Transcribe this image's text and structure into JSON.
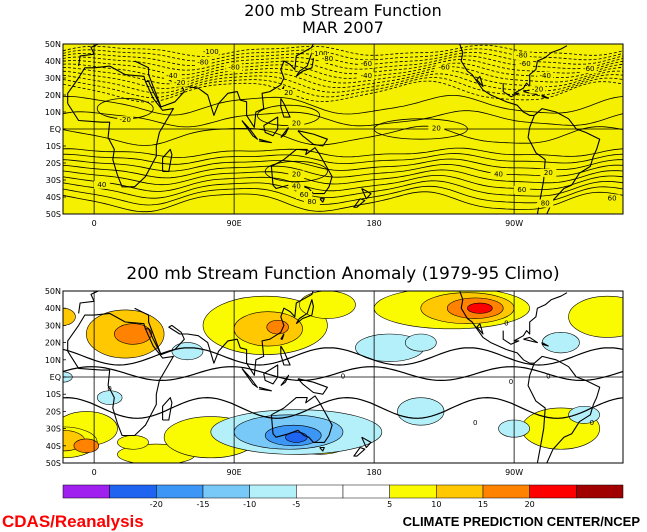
{
  "top_map": {
    "title_line1": "200 mb Stream Function",
    "title_line2": "MAR 2007",
    "fill_color": "#f5f000",
    "lat_labels": [
      "50N",
      "40N",
      "30N",
      "20N",
      "10N",
      "EQ",
      "10S",
      "20S",
      "30S",
      "40S",
      "50S"
    ],
    "lon_labels": [
      "0",
      "90E",
      "180",
      "90W",
      "0"
    ],
    "contour_labels": [
      {
        "text": "-100",
        "lon": 75,
        "lat": 44
      },
      {
        "text": "-80",
        "lon": 70,
        "lat": 38
      },
      {
        "text": "-60",
        "lon": -42,
        "lat": 34
      },
      {
        "text": "-40",
        "lon": 50,
        "lat": 30
      },
      {
        "text": "-20",
        "lon": 55,
        "lat": 26
      },
      {
        "text": "-80",
        "lon": 90,
        "lat": 35
      },
      {
        "text": "-100",
        "lon": 145,
        "lat": 43
      },
      {
        "text": "-80",
        "lon": 150,
        "lat": 40
      },
      {
        "text": "-60",
        "lon": 175,
        "lat": 37
      },
      {
        "text": "-40",
        "lon": 175,
        "lat": 30
      },
      {
        "text": "-60",
        "lon": -135,
        "lat": 35
      },
      {
        "text": "-80",
        "lon": -85,
        "lat": 42
      },
      {
        "text": "-60",
        "lon": -83,
        "lat": 37
      },
      {
        "text": "-40",
        "lon": -70,
        "lat": 30
      },
      {
        "text": "-20",
        "lon": -75,
        "lat": 22
      },
      {
        "text": "20",
        "lon": 125,
        "lat": 20
      },
      {
        "text": "-20",
        "lon": 20,
        "lat": 4
      },
      {
        "text": "20",
        "lon": 130,
        "lat": 2
      },
      {
        "text": "20",
        "lon": -140,
        "lat": -1
      },
      {
        "text": "20",
        "lon": 130,
        "lat": -28
      },
      {
        "text": "40",
        "lon": 130,
        "lat": -35
      },
      {
        "text": "60",
        "lon": 135,
        "lat": -40
      },
      {
        "text": "80",
        "lon": 140,
        "lat": -44
      },
      {
        "text": "40",
        "lon": 5,
        "lat": -34
      },
      {
        "text": "60",
        "lon": -27,
        "lat": -42
      },
      {
        "text": "40",
        "lon": -100,
        "lat": -28
      },
      {
        "text": "20",
        "lon": -68,
        "lat": -27
      },
      {
        "text": "60",
        "lon": -85,
        "lat": -37
      },
      {
        "text": "80",
        "lon": -70,
        "lat": -45
      }
    ]
  },
  "anomaly_map": {
    "title": "200 mb Stream Function Anomaly (1979-95 Climo)",
    "lat_labels": [
      "50N",
      "40N",
      "30N",
      "20N",
      "10N",
      "EQ",
      "10S",
      "20S",
      "30S",
      "40S",
      "50S"
    ],
    "lon_labels": [
      "0",
      "90E",
      "180",
      "90W",
      "0"
    ],
    "contour_zero_labels": [
      {
        "text": "0",
        "lon": 160,
        "lat": -1
      },
      {
        "text": "0",
        "lon": -68,
        "lat": -1
      },
      {
        "text": "0",
        "lon": -92,
        "lat": -4
      },
      {
        "text": "0",
        "lon": -115,
        "lat": -28
      },
      {
        "text": "0",
        "lon": -40,
        "lat": -28
      },
      {
        "text": "0",
        "lon": 10,
        "lat": -8
      },
      {
        "text": "0",
        "lon": -95,
        "lat": 30
      }
    ],
    "anomaly_blobs": [
      {
        "lon": 20,
        "lat": 25,
        "rx": 25,
        "ry": 14,
        "level": 10
      },
      {
        "lon": 25,
        "lat": 25,
        "rx": 12,
        "ry": 6,
        "level": 15
      },
      {
        "lon": 110,
        "lat": 30,
        "rx": 40,
        "ry": 17,
        "level": 5
      },
      {
        "lon": 112,
        "lat": 28,
        "rx": 22,
        "ry": 10,
        "level": 10
      },
      {
        "lon": 118,
        "lat": 29,
        "rx": 7,
        "ry": 4,
        "level": 15
      },
      {
        "lon": 150,
        "lat": 42,
        "rx": 18,
        "ry": 8,
        "level": 5
      },
      {
        "lon": -130,
        "lat": 40,
        "rx": 50,
        "ry": 12,
        "level": 5
      },
      {
        "lon": -120,
        "lat": 40,
        "rx": 30,
        "ry": 9,
        "level": 10
      },
      {
        "lon": -115,
        "lat": 40,
        "rx": 18,
        "ry": 6,
        "level": 15
      },
      {
        "lon": -112,
        "lat": 40,
        "rx": 8,
        "ry": 3,
        "level": 20
      },
      {
        "lon": -30,
        "lat": 35,
        "rx": 25,
        "ry": 12,
        "level": 5
      },
      {
        "lon": -20,
        "lat": 35,
        "rx": 8,
        "ry": 5,
        "level": 10
      },
      {
        "lon": -5,
        "lat": -30,
        "rx": 20,
        "ry": 10,
        "level": 5
      },
      {
        "lon": -60,
        "lat": -30,
        "rx": 25,
        "ry": 12,
        "level": 5
      },
      {
        "lon": -20,
        "lat": -38,
        "rx": 22,
        "ry": 9,
        "level": 5
      },
      {
        "lon": -20,
        "lat": -37,
        "rx": 14,
        "ry": 6,
        "level": 10
      },
      {
        "lon": -5,
        "lat": -40,
        "rx": 8,
        "ry": 4,
        "level": 15
      },
      {
        "lon": 40,
        "lat": -45,
        "rx": 25,
        "ry": 6,
        "level": 5
      },
      {
        "lon": 75,
        "lat": -35,
        "rx": 30,
        "ry": 12,
        "level": 5
      },
      {
        "lon": 145,
        "lat": -37,
        "rx": 20,
        "ry": 8,
        "level": 5
      },
      {
        "lon": 25,
        "lat": -38,
        "rx": 10,
        "ry": 4,
        "level": 5
      },
      {
        "lon": 130,
        "lat": -32,
        "rx": 55,
        "ry": 13,
        "level": -5
      },
      {
        "lon": 125,
        "lat": -32,
        "rx": 35,
        "ry": 10,
        "level": -10
      },
      {
        "lon": 128,
        "lat": -34,
        "rx": 18,
        "ry": 6,
        "level": -15
      },
      {
        "lon": 130,
        "lat": -35,
        "rx": 7,
        "ry": 3,
        "level": -20
      },
      {
        "lon": -170,
        "lat": 17,
        "rx": 22,
        "ry": 8,
        "level": -5
      },
      {
        "lon": -150,
        "lat": 20,
        "rx": 10,
        "ry": 5,
        "level": -5
      },
      {
        "lon": 60,
        "lat": 15,
        "rx": 10,
        "ry": 5,
        "level": -5
      },
      {
        "lon": 10,
        "lat": -12,
        "rx": 8,
        "ry": 4,
        "level": -5
      },
      {
        "lon": -60,
        "lat": 20,
        "rx": 12,
        "ry": 6,
        "level": -5
      },
      {
        "lon": -20,
        "lat": 0,
        "rx": 6,
        "ry": 3,
        "level": -5
      },
      {
        "lon": -150,
        "lat": -20,
        "rx": 15,
        "ry": 8,
        "level": -5
      },
      {
        "lon": -45,
        "lat": -22,
        "rx": 10,
        "ry": 5,
        "level": -5
      },
      {
        "lon": -90,
        "lat": -30,
        "rx": 10,
        "ry": 5,
        "level": -5
      }
    ]
  },
  "colorbar": {
    "ticks": [
      "-20",
      "-15",
      "-10",
      "-5",
      "5",
      "10",
      "15",
      "20"
    ],
    "colors": [
      "#a020f0",
      "#1e64f0",
      "#3c96f5",
      "#78c8f8",
      "#b4f0fa",
      "#ffffff",
      "#ffffff",
      "#fafa00",
      "#ffc800",
      "#ff8200",
      "#ff0000",
      "#a00000"
    ]
  },
  "level_colors": {
    "-20": "#1e64f0",
    "-15": "#3c96f5",
    "-10": "#78c8f8",
    "-5": "#b4f0fa",
    "5": "#fafa00",
    "10": "#ffc800",
    "15": "#ff8200",
    "20": "#ff0000"
  },
  "footer": {
    "left": "CDAS/Reanalysis",
    "right": "CLIMATE PREDICTION CENTER/NCEP",
    "left_color": "#ff0000"
  }
}
